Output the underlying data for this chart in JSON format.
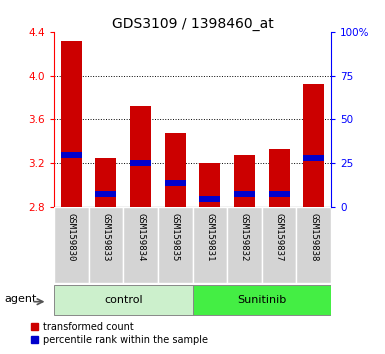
{
  "title": "GDS3109 / 1398460_at",
  "samples": [
    "GSM159830",
    "GSM159833",
    "GSM159834",
    "GSM159835",
    "GSM159831",
    "GSM159832",
    "GSM159837",
    "GSM159838"
  ],
  "group_labels": [
    "control",
    "Sunitinib"
  ],
  "group_colors": [
    "#ccf0cc",
    "#44ee44"
  ],
  "red_values": [
    4.32,
    3.25,
    3.72,
    3.48,
    3.2,
    3.28,
    3.33,
    3.92
  ],
  "blue_values": [
    3.28,
    2.92,
    3.2,
    3.02,
    2.87,
    2.92,
    2.92,
    3.25
  ],
  "baseline": 2.8,
  "ylim": [
    2.8,
    4.4
  ],
  "yticks": [
    2.8,
    3.2,
    3.6,
    4.0,
    4.4
  ],
  "right_ytick_vals": [
    0,
    25,
    50,
    75,
    100
  ],
  "right_ylabels": [
    "0",
    "25",
    "50",
    "75",
    "100%"
  ],
  "bar_color": "#cc0000",
  "blue_color": "#0000cc",
  "bar_width": 0.6,
  "plot_bg": "#ffffff",
  "legend_items": [
    "transformed count",
    "percentile rank within the sample"
  ],
  "xlabel_agent": "agent",
  "title_fontsize": 10,
  "tick_fontsize": 7.5,
  "label_fontsize": 7.5,
  "sample_fontsize": 6.5,
  "grid_color": "#000000",
  "grid_lines": [
    3.2,
    3.6,
    4.0
  ]
}
